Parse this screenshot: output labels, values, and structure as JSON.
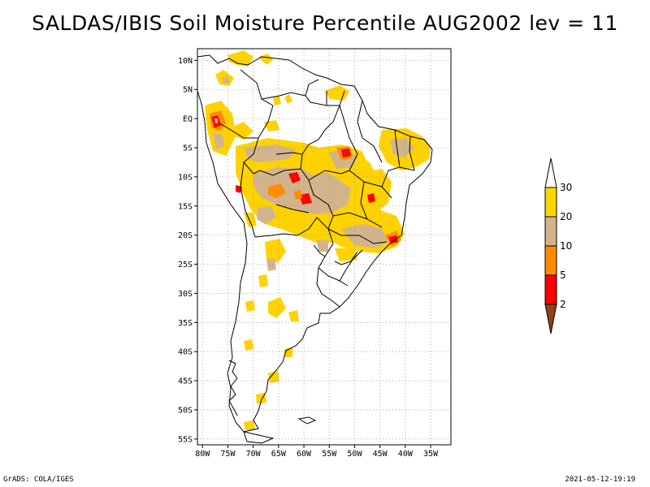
{
  "title": "SALDAS/IBIS Soil Moisture Percentile AUG2002 lev = 11",
  "footer": {
    "left": "GrADS: COLA/IGES",
    "right": "2021-05-12-19:19"
  },
  "map": {
    "region": "South America",
    "projection": "lat-lon",
    "lon_range": [
      -81,
      -31
    ],
    "lat_range": [
      -56,
      12
    ],
    "grid": true,
    "lon_ticks": [
      "80W",
      "75W",
      "70W",
      "65W",
      "60W",
      "55W",
      "50W",
      "45W",
      "40W",
      "35W"
    ],
    "lat_ticks": [
      "10N",
      "5N",
      "EQ",
      "5S",
      "10S",
      "15S",
      "20S",
      "25S",
      "30S",
      "35S",
      "40S",
      "45S",
      "50S",
      "55S"
    ]
  },
  "colorbar": {
    "labels": [
      "30",
      "20",
      "10",
      "5",
      "2"
    ],
    "colors": [
      "#ffffff",
      "#ffd700",
      "#d2b48c",
      "#ff8c00",
      "#ff0000",
      "#8b4513"
    ]
  },
  "legend_colors": {
    "p20_30": "#ffd200",
    "p10_20": "#d2b48c",
    "p5_10": "#ff8c00",
    "p2_5": "#ff0000",
    "lt2": "#8b4513"
  }
}
